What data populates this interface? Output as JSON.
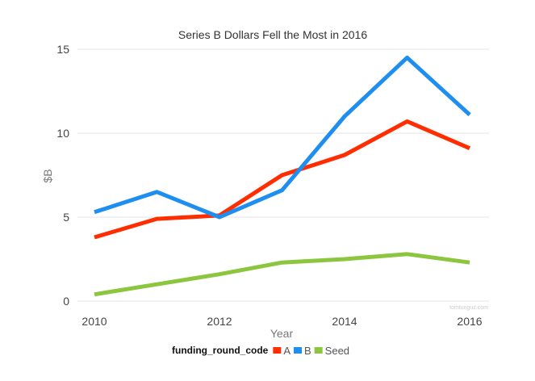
{
  "chart_data": {
    "type": "line",
    "title": "Series B Dollars Fell the Most in 2016",
    "xlabel": "Year",
    "ylabel": "$B",
    "x": [
      2010,
      2011,
      2012,
      2013,
      2014,
      2015,
      2016
    ],
    "x_ticks": [
      2010,
      2012,
      2014,
      2016
    ],
    "y_ticks": [
      0,
      5,
      10,
      15
    ],
    "ylim": [
      0,
      15
    ],
    "grid": true,
    "legend": {
      "title": "funding_round_code",
      "placement": "bottom"
    },
    "watermark": "tomtunguz.com",
    "series": [
      {
        "name": "A",
        "color": "#ff2d00",
        "values": [
          3.8,
          4.9,
          5.1,
          7.5,
          8.7,
          10.7,
          9.1
        ]
      },
      {
        "name": "B",
        "color": "#1f8ef1",
        "values": [
          5.3,
          6.5,
          5.0,
          6.6,
          11.0,
          14.5,
          11.1
        ]
      },
      {
        "name": "Seed",
        "color": "#8cc63f",
        "values": [
          0.4,
          1.0,
          1.6,
          2.3,
          2.5,
          2.8,
          2.3
        ]
      }
    ]
  }
}
